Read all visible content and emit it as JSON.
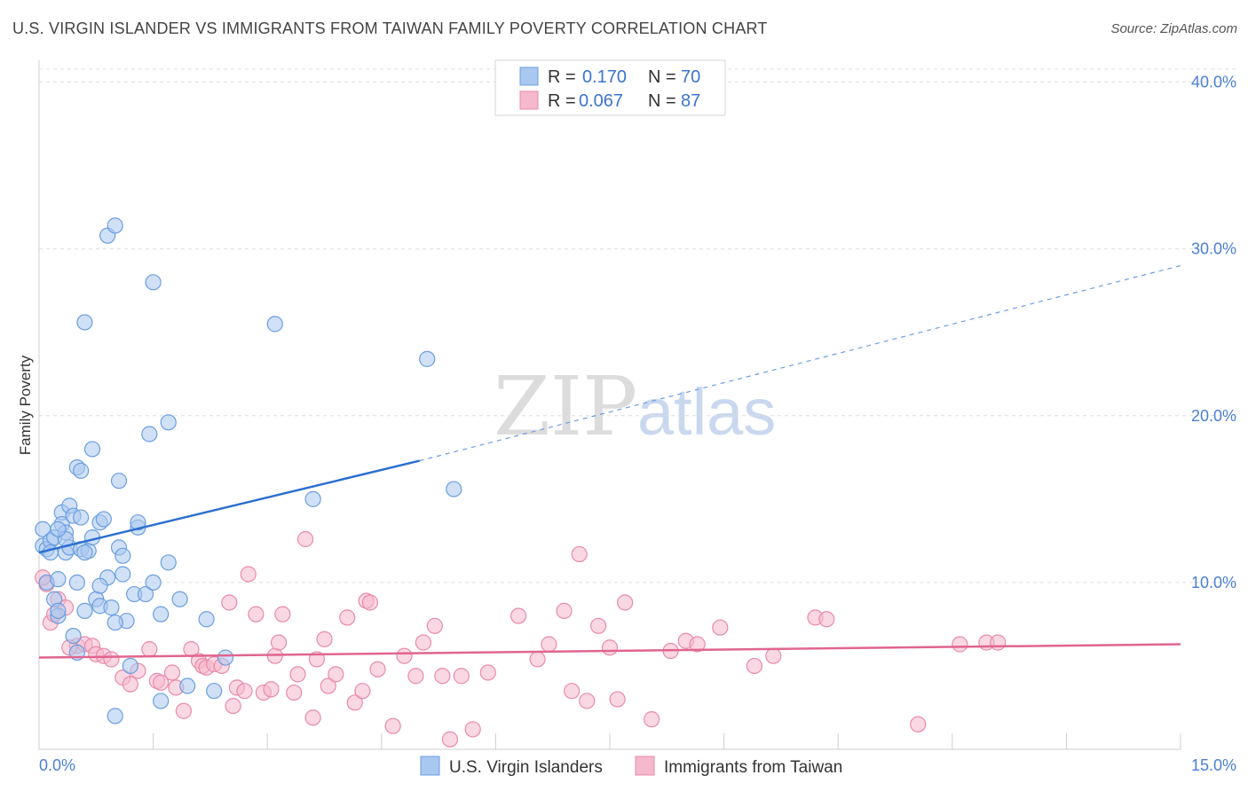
{
  "title": "U.S. VIRGIN ISLANDER VS IMMIGRANTS FROM TAIWAN FAMILY POVERTY CORRELATION CHART",
  "source": "Source: ZipAtlas.com",
  "watermark": {
    "part1": "ZIP",
    "part2": "atlas"
  },
  "colors": {
    "blue_fill": "#a9c8f0",
    "blue_stroke": "#6b9ee0",
    "blue_line": "#2b6fd0",
    "pink_fill": "#f5b8cc",
    "pink_stroke": "#e98aa8",
    "pink_line": "#e0658f",
    "grid": "#dddddd",
    "tick_text": "#4a7fd4"
  },
  "legend": {
    "rows": [
      {
        "r_label": "R =",
        "r_value": "0.170",
        "n_label": "N =",
        "n_value": "70"
      },
      {
        "r_label": "R =",
        "r_value": "0.067",
        "n_label": "N =",
        "n_value": "87"
      }
    ]
  },
  "chart_data": {
    "type": "scatter",
    "title": "U.S. VIRGIN ISLANDER VS IMMIGRANTS FROM TAIWAN FAMILY POVERTY CORRELATION CHART",
    "xlabel": "",
    "ylabel": "Family Poverty",
    "xlim": [
      0,
      15
    ],
    "ylim": [
      0,
      42
    ],
    "x_tick_labels": [
      "0.0%",
      "15.0%"
    ],
    "y_ticks": [
      10,
      20,
      30,
      40
    ],
    "y_tick_labels": [
      "10.0%",
      "20.0%",
      "30.0%",
      "40.0%"
    ],
    "grid": true,
    "series": [
      {
        "name": "U.S. Virgin Islanders",
        "r": 0.17,
        "n": 70,
        "trend": {
          "x0": 0,
          "y0": 11.8,
          "x1": 5,
          "y1": 17.3,
          "dashed_to_x": 15,
          "dashed_y1": 29.0
        },
        "points": [
          [
            0.05,
            12.2
          ],
          [
            0.05,
            13.2
          ],
          [
            0.1,
            12.0
          ],
          [
            0.1,
            10.0
          ],
          [
            0.15,
            12.5
          ],
          [
            0.2,
            12.7
          ],
          [
            0.2,
            9.0
          ],
          [
            0.25,
            10.2
          ],
          [
            0.25,
            8.0
          ],
          [
            0.3,
            14.2
          ],
          [
            0.3,
            13.5
          ],
          [
            0.35,
            11.8
          ],
          [
            0.35,
            13.0
          ],
          [
            0.4,
            14.6
          ],
          [
            0.4,
            12.1
          ],
          [
            0.45,
            6.8
          ],
          [
            0.45,
            14.0
          ],
          [
            0.5,
            16.9
          ],
          [
            0.5,
            10.0
          ],
          [
            0.55,
            16.7
          ],
          [
            0.55,
            12.0
          ],
          [
            0.6,
            8.3
          ],
          [
            0.6,
            25.6
          ],
          [
            0.65,
            11.9
          ],
          [
            0.7,
            12.7
          ],
          [
            0.7,
            18.0
          ],
          [
            0.75,
            9.0
          ],
          [
            0.8,
            8.6
          ],
          [
            0.8,
            13.6
          ],
          [
            0.85,
            13.8
          ],
          [
            0.9,
            30.8
          ],
          [
            0.9,
            10.3
          ],
          [
            0.95,
            8.5
          ],
          [
            1.0,
            31.4
          ],
          [
            1.0,
            2.0
          ],
          [
            1.05,
            12.1
          ],
          [
            1.05,
            16.1
          ],
          [
            1.1,
            10.5
          ],
          [
            1.1,
            11.6
          ],
          [
            1.15,
            7.7
          ],
          [
            1.2,
            5.0
          ],
          [
            1.25,
            9.3
          ],
          [
            1.3,
            13.3
          ],
          [
            1.3,
            13.6
          ],
          [
            1.4,
            9.3
          ],
          [
            1.45,
            18.9
          ],
          [
            1.5,
            28.0
          ],
          [
            1.5,
            10.0
          ],
          [
            1.6,
            8.1
          ],
          [
            1.6,
            2.9
          ],
          [
            1.7,
            11.2
          ],
          [
            1.7,
            19.6
          ],
          [
            1.85,
            9.0
          ],
          [
            1.95,
            3.8
          ],
          [
            2.2,
            7.8
          ],
          [
            2.3,
            3.5
          ],
          [
            2.45,
            5.5
          ],
          [
            0.25,
            8.3
          ],
          [
            3.1,
            25.5
          ],
          [
            3.6,
            15.0
          ],
          [
            5.1,
            23.4
          ],
          [
            5.45,
            15.6
          ],
          [
            0.15,
            11.8
          ],
          [
            0.5,
            5.8
          ],
          [
            0.55,
            13.9
          ],
          [
            0.6,
            11.8
          ],
          [
            0.35,
            12.6
          ],
          [
            0.8,
            9.8
          ],
          [
            1.0,
            7.6
          ],
          [
            0.25,
            13.2
          ]
        ]
      },
      {
        "name": "Immigrants from Taiwan",
        "r": 0.067,
        "n": 87,
        "trend": {
          "x0": 0,
          "y0": 5.5,
          "x1": 15,
          "y1": 6.3
        },
        "points": [
          [
            0.1,
            9.9
          ],
          [
            0.15,
            7.6
          ],
          [
            0.2,
            8.1
          ],
          [
            0.25,
            9.0
          ],
          [
            0.35,
            8.5
          ],
          [
            0.5,
            6.2
          ],
          [
            0.6,
            6.3
          ],
          [
            0.7,
            6.2
          ],
          [
            0.75,
            5.7
          ],
          [
            0.85,
            5.6
          ],
          [
            0.95,
            5.4
          ],
          [
            1.1,
            4.3
          ],
          [
            1.2,
            3.9
          ],
          [
            1.3,
            4.7
          ],
          [
            1.45,
            6.0
          ],
          [
            1.55,
            4.1
          ],
          [
            1.6,
            4.0
          ],
          [
            1.75,
            4.6
          ],
          [
            1.8,
            3.7
          ],
          [
            1.9,
            2.3
          ],
          [
            2.0,
            6.0
          ],
          [
            2.1,
            5.3
          ],
          [
            2.15,
            5.0
          ],
          [
            2.2,
            4.9
          ],
          [
            2.3,
            5.1
          ],
          [
            2.4,
            5.0
          ],
          [
            2.5,
            8.8
          ],
          [
            2.55,
            2.6
          ],
          [
            2.6,
            3.7
          ],
          [
            2.7,
            3.5
          ],
          [
            2.75,
            10.5
          ],
          [
            2.85,
            8.1
          ],
          [
            2.95,
            3.4
          ],
          [
            3.05,
            3.6
          ],
          [
            3.1,
            5.6
          ],
          [
            3.15,
            6.4
          ],
          [
            3.2,
            8.1
          ],
          [
            3.35,
            3.4
          ],
          [
            3.4,
            4.5
          ],
          [
            3.5,
            12.6
          ],
          [
            3.6,
            1.9
          ],
          [
            3.65,
            5.4
          ],
          [
            3.75,
            6.6
          ],
          [
            3.8,
            3.8
          ],
          [
            3.9,
            4.5
          ],
          [
            4.05,
            7.9
          ],
          [
            4.15,
            2.8
          ],
          [
            4.25,
            3.5
          ],
          [
            4.3,
            8.9
          ],
          [
            4.35,
            8.8
          ],
          [
            4.45,
            4.8
          ],
          [
            4.65,
            1.4
          ],
          [
            4.8,
            5.6
          ],
          [
            4.95,
            4.4
          ],
          [
            5.05,
            6.4
          ],
          [
            5.2,
            7.4
          ],
          [
            5.3,
            4.4
          ],
          [
            5.4,
            0.6
          ],
          [
            5.55,
            4.4
          ],
          [
            5.7,
            1.2
          ],
          [
            5.9,
            4.6
          ],
          [
            6.3,
            8.0
          ],
          [
            6.55,
            5.4
          ],
          [
            6.7,
            6.3
          ],
          [
            6.9,
            8.3
          ],
          [
            7.0,
            3.5
          ],
          [
            7.1,
            11.7
          ],
          [
            7.2,
            2.9
          ],
          [
            7.35,
            7.4
          ],
          [
            7.5,
            6.1
          ],
          [
            7.6,
            3.0
          ],
          [
            7.7,
            8.8
          ],
          [
            8.05,
            1.8
          ],
          [
            8.3,
            5.9
          ],
          [
            8.5,
            6.5
          ],
          [
            8.65,
            6.3
          ],
          [
            8.95,
            7.3
          ],
          [
            9.4,
            5.0
          ],
          [
            9.65,
            5.6
          ],
          [
            10.2,
            7.9
          ],
          [
            10.35,
            7.8
          ],
          [
            11.55,
            1.5
          ],
          [
            12.1,
            6.3
          ],
          [
            12.45,
            6.4
          ],
          [
            12.6,
            6.4
          ],
          [
            0.05,
            10.3
          ],
          [
            0.4,
            6.1
          ]
        ]
      }
    ]
  },
  "bottom_legend": {
    "items": [
      "U.S. Virgin Islanders",
      "Immigrants from Taiwan"
    ]
  }
}
